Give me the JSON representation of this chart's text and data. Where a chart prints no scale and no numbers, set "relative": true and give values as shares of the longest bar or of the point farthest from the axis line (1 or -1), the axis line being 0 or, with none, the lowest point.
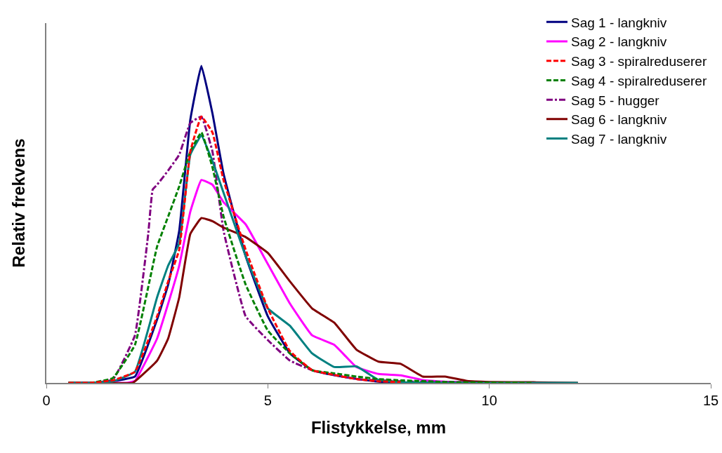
{
  "chart_data": {
    "type": "line",
    "xlabel": "Flistykkelse, mm",
    "ylabel": "Relativ frekvens",
    "relative": true,
    "xlim": [
      0,
      15
    ],
    "xticks": [
      0,
      5,
      10,
      15
    ],
    "grid": false,
    "legend": "top right",
    "marker": "none",
    "series": [
      {
        "name": "Sag 1 - langkniv",
        "color": "#000080",
        "line_style": "solid",
        "x": [
          0.5,
          1.0,
          1.5,
          2.0,
          2.5,
          2.75,
          3.0,
          3.25,
          3.5,
          3.75,
          4.0,
          4.5,
          5.0,
          5.5,
          6.0,
          6.5,
          7.0,
          7.5,
          8.0,
          9.0,
          10.0
        ],
        "values": [
          0,
          0,
          0.005,
          0.02,
          0.2,
          0.31,
          0.48,
          0.83,
          1,
          0.85,
          0.66,
          0.4,
          0.21,
          0.093,
          0.04,
          0.024,
          0.013,
          0.004,
          0,
          0,
          0
        ]
      },
      {
        "name": "Sag 2 - langkniv",
        "color": "#ff00ff",
        "line_style": "solid",
        "x": [
          0.5,
          1.0,
          1.5,
          1.8,
          2.0,
          2.5,
          2.75,
          3.0,
          3.25,
          3.5,
          3.75,
          4.0,
          4.5,
          5.0,
          5.5,
          6.0,
          6.5,
          7.0,
          7.5,
          8.0,
          8.5,
          9.0,
          10.0
        ],
        "values": [
          0,
          0,
          0,
          0,
          0.006,
          0.14,
          0.25,
          0.37,
          0.54,
          0.64,
          0.625,
          0.57,
          0.5,
          0.375,
          0.25,
          0.15,
          0.12,
          0.05,
          0.028,
          0.024,
          0.009,
          0.004,
          0
        ]
      },
      {
        "name": "Sag 3 - spiralreduserer",
        "color": "#ff0000",
        "line_style": "dashed",
        "x": [
          0.5,
          1.0,
          1.5,
          2.0,
          2.5,
          2.75,
          3.0,
          3.25,
          3.5,
          3.75,
          4.0,
          4.5,
          5.0,
          5.5,
          6.0,
          6.5,
          7.0,
          7.5,
          8.0
        ],
        "values": [
          0,
          0,
          0.008,
          0.035,
          0.21,
          0.32,
          0.42,
          0.73,
          0.84,
          0.79,
          0.64,
          0.42,
          0.235,
          0.1,
          0.04,
          0.025,
          0.012,
          0.005,
          0.002
        ]
      },
      {
        "name": "Sag 4 - spiralreduserer",
        "color": "#008000",
        "line_style": "dashed",
        "x": [
          0.5,
          1.0,
          1.5,
          2.0,
          2.5,
          2.75,
          3.0,
          3.25,
          3.5,
          3.75,
          4.0,
          4.5,
          5.0,
          5.5,
          6.0,
          6.5,
          7.0,
          7.5,
          8.0,
          9.0,
          10.0,
          11.0
        ],
        "values": [
          0,
          0,
          0.015,
          0.12,
          0.43,
          0.525,
          0.62,
          0.73,
          0.79,
          0.68,
          0.525,
          0.31,
          0.165,
          0.093,
          0.04,
          0.03,
          0.02,
          0.012,
          0.008,
          0.003,
          0.001,
          0
        ]
      },
      {
        "name": "Sag 5 - hugger",
        "color": "#800080",
        "line_style": "dashdot",
        "x": [
          0.5,
          1.0,
          1.5,
          2.0,
          2.3,
          2.4,
          2.5,
          2.75,
          3.0,
          3.25,
          3.5,
          3.75,
          4.0,
          4.5,
          5.0,
          5.5,
          6.0,
          6.5,
          7.0,
          8.0,
          9.0,
          10.0
        ],
        "values": [
          0,
          0,
          0.01,
          0.15,
          0.47,
          0.61,
          0.625,
          0.67,
          0.72,
          0.82,
          0.84,
          0.73,
          0.48,
          0.21,
          0.135,
          0.07,
          0.04,
          0.025,
          0.012,
          0.005,
          0.002,
          0.001
        ]
      },
      {
        "name": "Sag 6 - langkniv",
        "color": "#800000",
        "line_style": "solid",
        "x": [
          0.5,
          1.0,
          1.5,
          1.95,
          2.5,
          2.75,
          3.0,
          3.25,
          3.5,
          3.75,
          4.0,
          4.5,
          5.0,
          5.5,
          6.0,
          6.5,
          7.0,
          7.5,
          8.0,
          8.5,
          9.0,
          9.5,
          10.0,
          11.0,
          12.0
        ],
        "values": [
          0,
          0,
          0,
          0,
          0.07,
          0.14,
          0.27,
          0.47,
          0.52,
          0.51,
          0.49,
          0.46,
          0.41,
          0.32,
          0.235,
          0.19,
          0.105,
          0.067,
          0.06,
          0.02,
          0.02,
          0.006,
          0.003,
          0.002,
          0
        ]
      },
      {
        "name": "Sag 7 - langkniv",
        "color": "#008080",
        "line_style": "solid",
        "x": [
          0.5,
          1.0,
          1.5,
          2.0,
          2.5,
          2.75,
          3.0,
          3.25,
          3.5,
          3.75,
          4.0,
          4.5,
          5.0,
          5.5,
          6.0,
          6.5,
          7.0,
          7.5,
          8.0,
          9.0,
          10.0,
          11.0,
          12.0
        ],
        "values": [
          0,
          0,
          0.005,
          0.035,
          0.27,
          0.37,
          0.44,
          0.72,
          0.78,
          0.7,
          0.6,
          0.4,
          0.235,
          0.18,
          0.093,
          0.05,
          0.052,
          0.009,
          0.002,
          0,
          0,
          0,
          0
        ]
      }
    ]
  }
}
